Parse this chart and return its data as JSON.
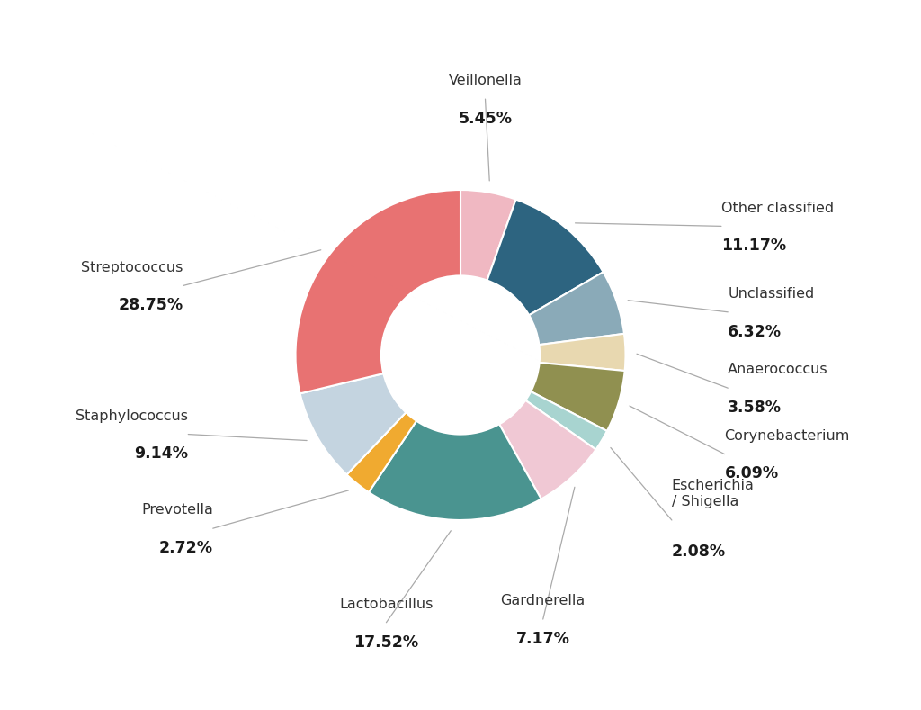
{
  "labels": [
    "Veillonella",
    "Other classified",
    "Unclassified",
    "Anaerococcus",
    "Corynebacterium",
    "Escherichia\n/ Shigella",
    "Gardnerella",
    "Lactobacillus",
    "Prevotella",
    "Staphylococcus",
    "Streptococcus"
  ],
  "percentages": [
    "5.45%",
    "11.17%",
    "6.32%",
    "3.58%",
    "6.09%",
    "2.08%",
    "7.17%",
    "17.52%",
    "2.72%",
    "9.14%",
    "28.75%"
  ],
  "values": [
    5.45,
    11.17,
    6.32,
    3.58,
    6.09,
    2.08,
    7.17,
    17.52,
    2.72,
    9.14,
    28.75
  ],
  "colors": [
    "#f0b8c2",
    "#2d6480",
    "#8aaab8",
    "#e8d8b0",
    "#909050",
    "#a8d4d0",
    "#f0c8d4",
    "#4a9490",
    "#f0aa30",
    "#c4d4e0",
    "#e87272"
  ],
  "background_color": "#ffffff",
  "label_fontsize": 11.5,
  "pct_fontsize": 12.5,
  "line_color": "#aaaaaa",
  "donut_width": 0.52,
  "edge_color": "white",
  "edge_linewidth": 1.5
}
